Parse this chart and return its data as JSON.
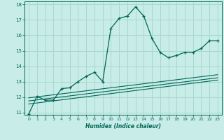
{
  "xlabel": "Humidex (Indice chaleur)",
  "bg_color": "#c8ece8",
  "grid_color": "#a8d8d0",
  "line_color": "#006655",
  "xlim": [
    -0.5,
    23.5
  ],
  "ylim": [
    10.85,
    18.2
  ],
  "xticks": [
    0,
    1,
    2,
    3,
    4,
    5,
    6,
    7,
    8,
    9,
    10,
    11,
    12,
    13,
    14,
    15,
    16,
    17,
    18,
    19,
    20,
    21,
    22,
    23
  ],
  "yticks": [
    11,
    12,
    13,
    14,
    15,
    16,
    17,
    18
  ],
  "curve1_x": [
    0,
    1,
    2,
    3,
    4,
    5,
    6,
    7,
    8,
    9,
    10,
    11,
    12,
    13,
    14,
    15,
    16,
    17,
    18,
    19,
    20,
    21,
    22,
    23
  ],
  "curve1_y": [
    10.9,
    12.05,
    11.8,
    11.8,
    12.55,
    12.6,
    13.0,
    13.35,
    13.6,
    13.0,
    16.45,
    17.1,
    17.25,
    17.85,
    17.25,
    15.8,
    14.9,
    14.55,
    14.7,
    14.9,
    14.9,
    15.15,
    15.65,
    15.65
  ],
  "line1_x": [
    0,
    23
  ],
  "line1_y": [
    11.55,
    13.1
  ],
  "line2_x": [
    0,
    23
  ],
  "line2_y": [
    11.75,
    13.25
  ],
  "line3_x": [
    0,
    23
  ],
  "line3_y": [
    11.95,
    13.45
  ]
}
